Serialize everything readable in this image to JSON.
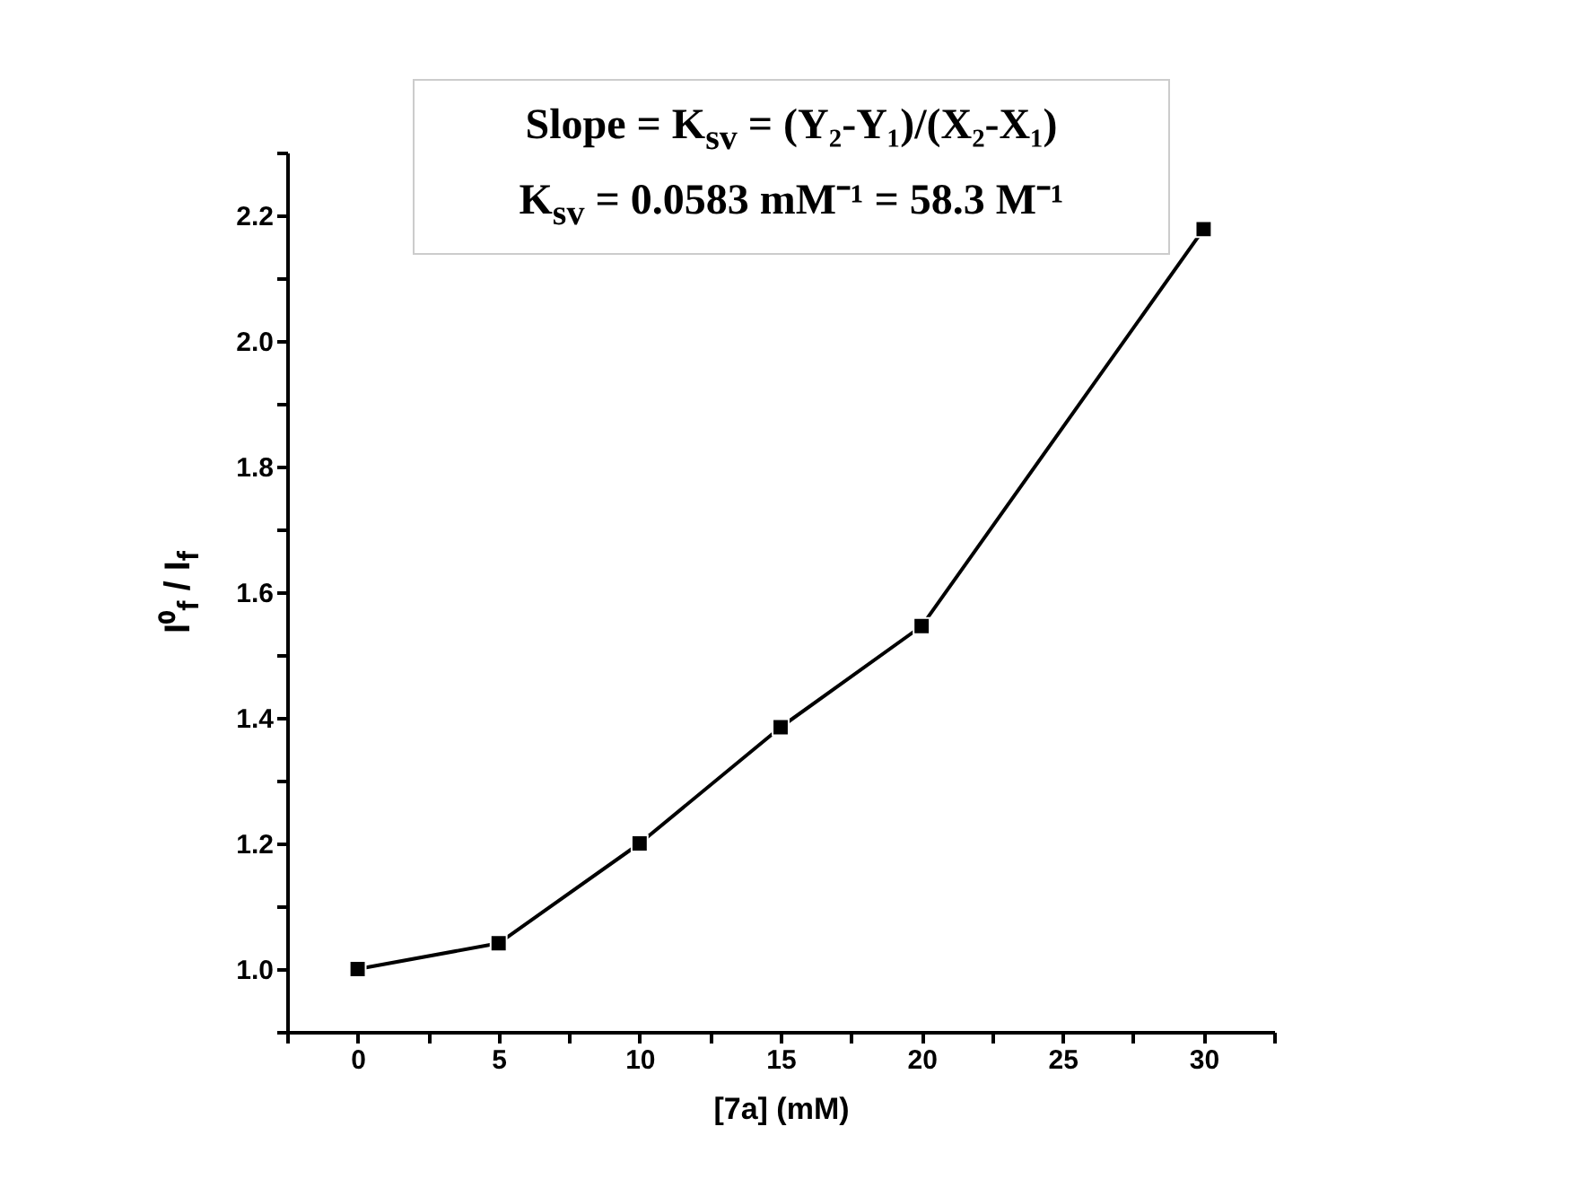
{
  "chart_data": {
    "type": "line",
    "xlabel": "[7a] (mM)",
    "ylabel": "I⁰$_{f}$ / I$_{f}$",
    "annotations": [
      "Slope = K$_{sv}$ = (Y₂-Y₁)/(X₂-X₁)",
      "K$_{sv}$ = 0.0583 mM⁻¹ = 58.3 M⁻¹"
    ],
    "x": [
      0,
      5,
      10,
      15,
      20,
      30
    ],
    "series": [
      {
        "color": "#000000",
        "values": [
          1.0,
          1.041,
          1.2,
          1.385,
          1.546,
          2.178
        ]
      }
    ],
    "xlim": [
      -2.5,
      32.5
    ],
    "xticks": [
      {
        "value": -2.5,
        "label": null
      },
      0,
      {
        "value": 2.5,
        "label": null
      },
      5,
      {
        "value": 7.5,
        "label": null
      },
      10,
      {
        "value": 12.5,
        "label": null
      },
      15,
      {
        "value": 17.5,
        "label": null
      },
      20,
      {
        "value": 22.5,
        "label": null
      },
      25,
      {
        "value": 27.5,
        "label": null
      },
      30,
      {
        "value": 32.5,
        "label": null
      }
    ],
    "ylim": [
      0.9,
      2.3
    ],
    "yticks": [
      {
        "value": 0.9,
        "label": null
      },
      {
        "value": 1.0,
        "label": "1.0"
      },
      {
        "value": 1.1,
        "label": null
      },
      1.2,
      {
        "value": 1.3,
        "label": null
      },
      1.4,
      {
        "value": 1.5,
        "label": null
      },
      1.6,
      {
        "value": 1.7,
        "label": null
      },
      1.8,
      {
        "value": 1.9,
        "label": null
      },
      {
        "value": 2.0,
        "label": "2.0"
      },
      {
        "value": 2.1,
        "label": null
      },
      2.2,
      {
        "value": 2.3,
        "label": null
      }
    ],
    "grid": false,
    "marker": "square",
    "line_style": "solid"
  }
}
